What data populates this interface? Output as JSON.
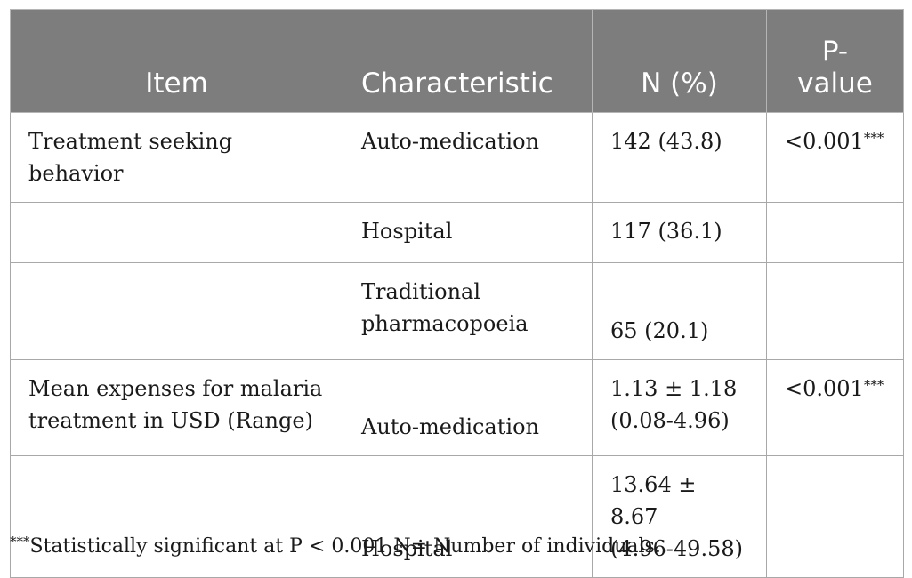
{
  "table": {
    "headers": {
      "item": "Item",
      "characteristic": "Characteristic",
      "n_percent": "N (%)",
      "p_value_line1": "P-",
      "p_value_line2": "value"
    },
    "rows": [
      {
        "item": "Treatment seeking behavior",
        "characteristic": "Auto-medication",
        "n_percent": "142 (43.8)",
        "p_value": "<0.001",
        "p_sig": "***"
      },
      {
        "item": "",
        "characteristic": "Hospital",
        "n_percent": "117 (36.1)",
        "p_value": "",
        "p_sig": ""
      },
      {
        "item": "",
        "characteristic_line1": "Traditional",
        "characteristic_line2": "pharmacopoeia",
        "n_percent": "65 (20.1)",
        "p_value": "",
        "p_sig": ""
      },
      {
        "item_line1": "Mean expenses for malaria",
        "item_line2": "treatment in USD (Range)",
        "characteristic": "Auto-medication",
        "n_line1": "1.13 ± 1.18",
        "n_line2": "(0.08-4.96)",
        "p_value": "<0.001",
        "p_sig": "***"
      },
      {
        "item": "",
        "characteristic": "Hospital",
        "n_line1": "13.64 ± 8.67",
        "n_line2": "(4.96-49.58)",
        "p_value": "",
        "p_sig": ""
      }
    ]
  },
  "footnote": {
    "marker": "***",
    "text": "Statistically significant at P < 0.001 N= Number of individuals."
  },
  "colors": {
    "header_bg": "#7d7d7d",
    "header_text": "#ffffff",
    "border": "#a8a8a8"
  }
}
